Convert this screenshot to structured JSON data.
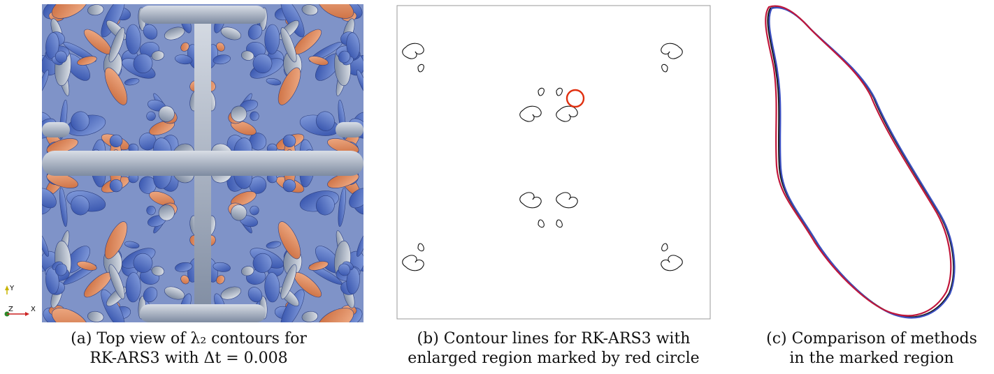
{
  "figure": {
    "panel_a": {
      "caption_line1": "(a) Top view of λ₂ contours for",
      "caption_line2": "RK-ARS3 with Δt = 0.008",
      "axis_labels": {
        "y": "Y",
        "z": "Z",
        "x": "X"
      },
      "colors": {
        "vortex_blue": "#4a6bc4",
        "vortex_orange": "#e08a5e",
        "vortex_gray": "#a9b4c6"
      }
    },
    "panel_b": {
      "caption_line1": "(b) Contour lines for RK-ARS3 with",
      "caption_line2": "enlarged region marked by red circle",
      "colors": {
        "marker": "#e03010",
        "contour": "#111111",
        "frame": "#999999"
      }
    },
    "panel_c": {
      "caption_line1": "(c) Comparison of methods",
      "caption_line2": "in the marked region",
      "colors": {
        "method_red": "#c0163a",
        "method_blue": "#3b4fc0",
        "method_black": "#1a1a1a"
      }
    }
  }
}
